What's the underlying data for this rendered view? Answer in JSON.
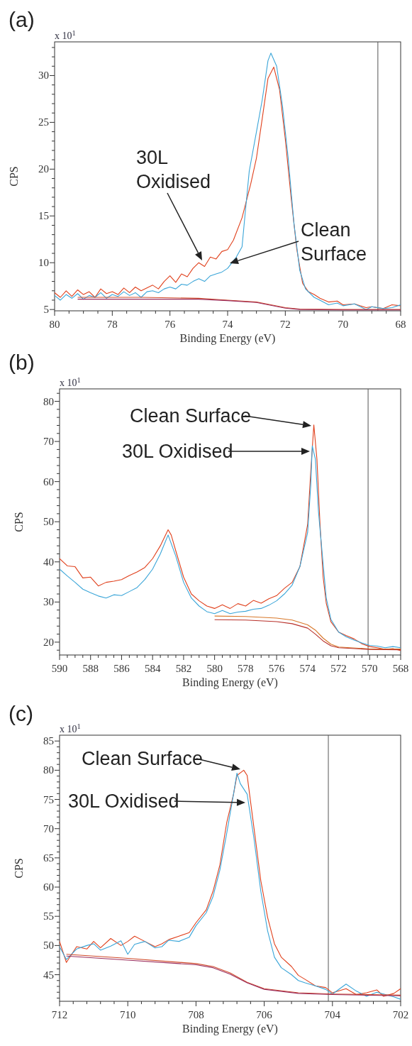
{
  "chart_data": [
    {
      "type": "line",
      "title": "(a)",
      "xlabel": "Binding Energy (eV)",
      "ylabel": "CPS",
      "xlim": [
        80,
        68
      ],
      "ylim": [
        4.86,
        33.6
      ],
      "xticks": [
        80,
        {
          "value": 79.5,
          "label": null
        },
        {
          "value": 79,
          "label": null
        },
        {
          "value": 78.5,
          "label": null
        },
        78,
        {
          "value": 77.5,
          "label": null
        },
        {
          "value": 77,
          "label": null
        },
        {
          "value": 76.5,
          "label": null
        },
        76,
        {
          "value": 75.5,
          "label": null
        },
        {
          "value": 75,
          "label": null
        },
        {
          "value": 74.5,
          "label": null
        },
        74,
        {
          "value": 73.5,
          "label": null
        },
        {
          "value": 73,
          "label": null
        },
        {
          "value": 72.5,
          "label": null
        },
        72,
        {
          "value": 71.5,
          "label": null
        },
        {
          "value": 71,
          "label": null
        },
        {
          "value": 70.5,
          "label": null
        },
        70,
        {
          "value": 69.5,
          "label": null
        },
        {
          "value": 69,
          "label": null
        },
        {
          "value": 68.5,
          "label": null
        },
        68
      ],
      "yticks": [
        5,
        {
          "value": 6,
          "label": null
        },
        {
          "value": 7,
          "label": null
        },
        {
          "value": 8,
          "label": null
        },
        {
          "value": 9,
          "label": null
        },
        10,
        {
          "value": 11,
          "label": null
        },
        {
          "value": 12,
          "label": null
        },
        {
          "value": 13,
          "label": null
        },
        {
          "value": 14,
          "label": null
        },
        15,
        {
          "value": 16,
          "label": null
        },
        {
          "value": 17,
          "label": null
        },
        {
          "value": 18,
          "label": null
        },
        {
          "value": 19,
          "label": null
        },
        20,
        {
          "value": 21,
          "label": null
        },
        {
          "value": 22,
          "label": null
        },
        {
          "value": 23,
          "label": null
        },
        {
          "value": 24,
          "label": null
        },
        25,
        {
          "value": 26,
          "label": null
        },
        {
          "value": 27,
          "label": null
        },
        {
          "value": 28,
          "label": null
        },
        {
          "value": 29,
          "label": null
        },
        30,
        {
          "value": 31,
          "label": null
        },
        {
          "value": 32,
          "label": null
        },
        {
          "value": 33,
          "label": null
        }
      ],
      "ref_lines": [
        {
          "axis": "x",
          "value": 68.79,
          "color": "#555555"
        }
      ],
      "annotations": [
        "x 10$^{1}$",
        "30L Oxidised",
        "Clean Surface"
      ],
      "series": [
        {
          "color": "#e0401c",
          "x": [
            80,
            79.8,
            79.6,
            79.4,
            79.2,
            79,
            78.8,
            78.6,
            78.4,
            78.2,
            78,
            77.8,
            77.6,
            77.4,
            77.2,
            77,
            76.8,
            76.6,
            76.4,
            76.2,
            76,
            75.8,
            75.6,
            75.4,
            75.2,
            75,
            74.8,
            74.6,
            74.4,
            74.2,
            74,
            73.8,
            73.5,
            73.2,
            73,
            72.8,
            72.6,
            72.4,
            72.2,
            72,
            71.8,
            71.6,
            71.4,
            71.2,
            71,
            70.8,
            70.5,
            70.2,
            70,
            69.6,
            69.2,
            69,
            68.6,
            68.3,
            68
          ],
          "values": [
            6.8,
            6.3,
            7.0,
            6.4,
            7.1,
            6.6,
            6.9,
            6.3,
            7.2,
            6.7,
            6.9,
            6.6,
            7.3,
            6.8,
            7.4,
            7.0,
            7.3,
            7.6,
            7.2,
            8.0,
            8.6,
            7.9,
            8.8,
            8.5,
            9.4,
            10.0,
            9.6,
            10.6,
            10.4,
            11.2,
            11.4,
            12.4,
            14.8,
            18.4,
            21.2,
            25.4,
            29.7,
            30.9,
            28.5,
            23.2,
            17.0,
            11.4,
            7.8,
            6.9,
            6.6,
            6.2,
            5.8,
            5.9,
            5.5,
            5.6,
            5.2,
            5.3,
            5.1,
            5.5,
            5.4
          ]
        },
        {
          "color": "#3aa5d8",
          "x": [
            80,
            79.8,
            79.6,
            79.4,
            79.2,
            79,
            78.8,
            78.6,
            78.4,
            78.2,
            78,
            77.8,
            77.6,
            77.4,
            77.2,
            77,
            76.8,
            76.6,
            76.4,
            76.2,
            76,
            75.8,
            75.6,
            75.4,
            75.2,
            75,
            74.8,
            74.6,
            74.4,
            74.2,
            74,
            73.7,
            73.5,
            73.4,
            73.25,
            73,
            72.8,
            72.6,
            72.5,
            72.3,
            72.1,
            71.9,
            71.7,
            71.5,
            71.3,
            71,
            70.8,
            70.5,
            70.2,
            70,
            69.6,
            69.2,
            69,
            68.6,
            68.3,
            68
          ],
          "values": [
            6.5,
            6.0,
            6.6,
            6.2,
            6.7,
            6.1,
            6.5,
            6.3,
            6.8,
            6.2,
            6.6,
            6.4,
            6.9,
            6.5,
            6.8,
            6.3,
            6.9,
            7.0,
            6.8,
            7.2,
            7.4,
            7.2,
            7.7,
            7.6,
            8.0,
            8.3,
            8.0,
            8.6,
            8.8,
            9.0,
            9.4,
            10.6,
            11.7,
            15.0,
            19.8,
            24.0,
            27.4,
            31.6,
            32.4,
            31.0,
            26.8,
            21.2,
            14.2,
            9.2,
            7.2,
            6.3,
            6.0,
            5.5,
            5.7,
            5.4,
            5.6,
            5.0,
            5.3,
            5.1,
            5.2,
            5.5
          ]
        },
        {
          "color": "#d04a2a",
          "x": [
            79.2,
            77,
            75,
            74,
            73,
            72.5,
            72,
            71.5,
            70,
            68
          ],
          "values": [
            6.3,
            6.3,
            6.2,
            6.0,
            5.8,
            5.5,
            5.2,
            5.05,
            5.0,
            5.0
          ]
        },
        {
          "color": "#9a2c5c",
          "x": [
            79.2,
            77,
            75,
            74,
            73,
            72.5,
            72,
            71.5,
            70,
            68
          ],
          "values": [
            6.1,
            6.1,
            6.1,
            5.95,
            5.75,
            5.45,
            5.15,
            5.0,
            4.95,
            4.95
          ]
        }
      ]
    },
    {
      "type": "line",
      "title": "(b)",
      "xlabel": "Binding Energy (eV)",
      "ylabel": "CPS",
      "xlim": [
        590,
        568
      ],
      "ylim": [
        16.8,
        83.1
      ],
      "xticks": [
        590,
        {
          "value": 589.5,
          "label": null
        },
        {
          "value": 589,
          "label": null
        },
        {
          "value": 588.5,
          "label": null
        },
        588,
        {
          "value": 587.5,
          "label": null
        },
        {
          "value": 587,
          "label": null
        },
        {
          "value": 586.5,
          "label": null
        },
        586,
        {
          "value": 585.5,
          "label": null
        },
        {
          "value": 585,
          "label": null
        },
        {
          "value": 584.5,
          "label": null
        },
        584,
        {
          "value": 583.5,
          "label": null
        },
        {
          "value": 583,
          "label": null
        },
        {
          "value": 582.5,
          "label": null
        },
        582,
        {
          "value": 581.5,
          "label": null
        },
        {
          "value": 581,
          "label": null
        },
        {
          "value": 580.5,
          "label": null
        },
        580,
        {
          "value": 579.5,
          "label": null
        },
        {
          "value": 579,
          "label": null
        },
        {
          "value": 578.5,
          "label": null
        },
        578,
        {
          "value": 577.5,
          "label": null
        },
        {
          "value": 577,
          "label": null
        },
        {
          "value": 576.5,
          "label": null
        },
        576,
        {
          "value": 575.5,
          "label": null
        },
        {
          "value": 575,
          "label": null
        },
        {
          "value": 574.5,
          "label": null
        },
        574,
        {
          "value": 573.5,
          "label": null
        },
        {
          "value": 573,
          "label": null
        },
        {
          "value": 572.5,
          "label": null
        },
        572,
        {
          "value": 571.5,
          "label": null
        },
        {
          "value": 571,
          "label": null
        },
        {
          "value": 570.5,
          "label": null
        },
        570,
        {
          "value": 569.5,
          "label": null
        },
        {
          "value": 569,
          "label": null
        },
        {
          "value": 568.5,
          "label": null
        },
        568
      ],
      "yticks": [
        {
          "value": 18,
          "label": null
        },
        20,
        {
          "value": 22,
          "label": null
        },
        {
          "value": 24,
          "label": null
        },
        {
          "value": 26,
          "label": null
        },
        {
          "value": 28,
          "label": null
        },
        30,
        {
          "value": 32,
          "label": null
        },
        {
          "value": 34,
          "label": null
        },
        {
          "value": 36,
          "label": null
        },
        {
          "value": 38,
          "label": null
        },
        40,
        {
          "value": 42,
          "label": null
        },
        {
          "value": 44,
          "label": null
        },
        {
          "value": 46,
          "label": null
        },
        {
          "value": 48,
          "label": null
        },
        50,
        {
          "value": 52,
          "label": null
        },
        {
          "value": 54,
          "label": null
        },
        {
          "value": 56,
          "label": null
        },
        {
          "value": 58,
          "label": null
        },
        60,
        {
          "value": 62,
          "label": null
        },
        {
          "value": 64,
          "label": null
        },
        {
          "value": 66,
          "label": null
        },
        {
          "value": 68,
          "label": null
        },
        70,
        {
          "value": 72,
          "label": null
        },
        {
          "value": 74,
          "label": null
        },
        {
          "value": 76,
          "label": null
        },
        {
          "value": 78,
          "label": null
        },
        80,
        {
          "value": 82,
          "label": null
        }
      ],
      "ref_lines": [
        {
          "axis": "x",
          "value": 570.1,
          "color": "#555555"
        }
      ],
      "annotations": [
        "x 10$^{1}$",
        "Clean Surface",
        "30L Oxidised"
      ],
      "series": [
        {
          "color": "#e0401c",
          "x": [
            590,
            589.5,
            589,
            588.5,
            588,
            587.5,
            587,
            586.5,
            586,
            585.5,
            585,
            584.5,
            584,
            583.5,
            583,
            582.8,
            582.5,
            582,
            581.5,
            581,
            580.5,
            580,
            579.5,
            579,
            578.5,
            578,
            577.5,
            577,
            576.5,
            576,
            575.5,
            575,
            574.5,
            574,
            573.8,
            573.6,
            573.4,
            573.2,
            573,
            572.8,
            572.5,
            572,
            571.5,
            571,
            570.5,
            570,
            569.5,
            569,
            568.5,
            568
          ],
          "values": [
            40.8,
            39.0,
            38.8,
            36.0,
            36.2,
            34.0,
            34.9,
            35.2,
            35.6,
            36.6,
            37.5,
            38.6,
            40.8,
            44.0,
            48.0,
            46.7,
            42.7,
            36.2,
            32.0,
            30.3,
            29.0,
            28.4,
            29.3,
            28.4,
            29.6,
            29.0,
            30.4,
            29.7,
            30.8,
            31.6,
            33.4,
            34.9,
            38.8,
            49.3,
            62.4,
            74.1,
            65.6,
            49.3,
            36.2,
            29.7,
            25.1,
            22.5,
            21.6,
            20.8,
            19.6,
            18.9,
            18.6,
            18.2,
            18.4,
            17.9
          ]
        },
        {
          "color": "#3aa5d8",
          "x": [
            590,
            589.5,
            589,
            588.5,
            588,
            587.5,
            587,
            586.5,
            586,
            585.5,
            585,
            584.5,
            584,
            583.5,
            583,
            582.5,
            582,
            581.5,
            581,
            580.5,
            580,
            579.5,
            579,
            578.5,
            578,
            577.5,
            577,
            576.5,
            576,
            575.5,
            575,
            574.5,
            574,
            573.8,
            573.7,
            573.5,
            573.3,
            573,
            572.8,
            572.5,
            572,
            571.5,
            571,
            570.5,
            570,
            569.5,
            569,
            568.5,
            568
          ],
          "values": [
            38.2,
            36.5,
            34.9,
            33.2,
            32.3,
            31.5,
            31.0,
            31.8,
            31.6,
            32.6,
            33.6,
            35.6,
            38.2,
            42.0,
            46.7,
            41.4,
            34.9,
            31.0,
            29.0,
            27.6,
            27.1,
            27.9,
            27.1,
            27.5,
            27.7,
            28.2,
            28.4,
            29.2,
            30.3,
            32.0,
            34.2,
            38.8,
            47.3,
            59.0,
            68.9,
            65.6,
            52.5,
            39.5,
            31.0,
            25.7,
            22.5,
            21.3,
            20.5,
            19.8,
            19.2,
            19.0,
            18.6,
            18.9,
            18.6
          ]
        },
        {
          "color": "#d8782a",
          "x": [
            580,
            578,
            576,
            575,
            574,
            573.5,
            573,
            572.5,
            572,
            570,
            568
          ],
          "values": [
            26.5,
            26.4,
            26.0,
            25.5,
            24.3,
            23.0,
            21.0,
            19.5,
            18.8,
            18.3,
            18.3
          ]
        },
        {
          "color": "#b8302a",
          "x": [
            580,
            578,
            576,
            575,
            574,
            573.5,
            573,
            572.5,
            572,
            570,
            568
          ],
          "values": [
            25.6,
            25.5,
            25.1,
            24.6,
            23.5,
            22.0,
            20.3,
            19.1,
            18.6,
            18.2,
            18.1
          ]
        }
      ]
    },
    {
      "type": "line",
      "title": "(c)",
      "xlabel": "Binding Energy (eV)",
      "ylabel": "CPS",
      "xlim": [
        712,
        702
      ],
      "ylim": [
        40.45,
        86.0
      ],
      "xticks": [
        712,
        {
          "value": 711.6,
          "label": null
        },
        {
          "value": 711.2,
          "label": null
        },
        {
          "value": 710.8,
          "label": null
        },
        {
          "value": 710.4,
          "label": null
        },
        710,
        {
          "value": 709.6,
          "label": null
        },
        {
          "value": 709.2,
          "label": null
        },
        {
          "value": 708.8,
          "label": null
        },
        {
          "value": 708.4,
          "label": null
        },
        708,
        {
          "value": 707.6,
          "label": null
        },
        {
          "value": 707.2,
          "label": null
        },
        {
          "value": 706.8,
          "label": null
        },
        {
          "value": 706.4,
          "label": null
        },
        706,
        {
          "value": 705.6,
          "label": null
        },
        {
          "value": 705.2,
          "label": null
        },
        {
          "value": 704.8,
          "label": null
        },
        {
          "value": 704.4,
          "label": null
        },
        704,
        {
          "value": 703.6,
          "label": null
        },
        {
          "value": 703.2,
          "label": null
        },
        {
          "value": 702.8,
          "label": null
        },
        {
          "value": 702.4,
          "label": null
        },
        702
      ],
      "yticks": [
        {
          "value": 41,
          "label": null
        },
        {
          "value": 42,
          "label": null
        },
        {
          "value": 43,
          "label": null
        },
        {
          "value": 44,
          "label": null
        },
        45,
        {
          "value": 46,
          "label": null
        },
        {
          "value": 47,
          "label": null
        },
        {
          "value": 48,
          "label": null
        },
        {
          "value": 49,
          "label": null
        },
        50,
        {
          "value": 51,
          "label": null
        },
        {
          "value": 52,
          "label": null
        },
        {
          "value": 53,
          "label": null
        },
        {
          "value": 54,
          "label": null
        },
        55,
        {
          "value": 56,
          "label": null
        },
        {
          "value": 57,
          "label": null
        },
        {
          "value": 58,
          "label": null
        },
        {
          "value": 59,
          "label": null
        },
        60,
        {
          "value": 61,
          "label": null
        },
        {
          "value": 62,
          "label": null
        },
        {
          "value": 63,
          "label": null
        },
        {
          "value": 64,
          "label": null
        },
        65,
        {
          "value": 66,
          "label": null
        },
        {
          "value": 67,
          "label": null
        },
        {
          "value": 68,
          "label": null
        },
        {
          "value": 69,
          "label": null
        },
        70,
        {
          "value": 71,
          "label": null
        },
        {
          "value": 72,
          "label": null
        },
        {
          "value": 73,
          "label": null
        },
        {
          "value": 74,
          "label": null
        },
        75,
        {
          "value": 76,
          "label": null
        },
        {
          "value": 77,
          "label": null
        },
        {
          "value": 78,
          "label": null
        },
        {
          "value": 79,
          "label": null
        },
        80,
        {
          "value": 81,
          "label": null
        },
        {
          "value": 82,
          "label": null
        },
        {
          "value": 83,
          "label": null
        },
        {
          "value": 84,
          "label": null
        },
        85
      ],
      "ref_lines": [
        {
          "axis": "x",
          "value": 704.12,
          "color": "#555555"
        }
      ],
      "annotations": [
        "x 10$^{1}$",
        "Clean Surface",
        "30L Oxidised"
      ],
      "series": [
        {
          "color": "#e0401c",
          "x": [
            712,
            711.8,
            711.5,
            711.2,
            711,
            710.8,
            710.5,
            710.2,
            710,
            709.8,
            709.5,
            709.2,
            709,
            708.8,
            708.5,
            708.2,
            708,
            707.7,
            707.5,
            707.3,
            707.1,
            706.9,
            706.8,
            706.6,
            706.5,
            706.3,
            706.1,
            705.9,
            705.7,
            705.5,
            705.2,
            705,
            704.8,
            704.5,
            704.2,
            704,
            703.6,
            703.3,
            703,
            702.7,
            702.5,
            702.2,
            702
          ],
          "values": [
            50.7,
            47.1,
            49.8,
            49.4,
            50.7,
            49.6,
            51.2,
            50.0,
            50.7,
            51.6,
            50.7,
            49.8,
            50.3,
            51.0,
            51.6,
            52.2,
            53.9,
            56.1,
            59.3,
            63.8,
            71.0,
            75.9,
            79.1,
            80.0,
            79.1,
            70.1,
            61.1,
            54.8,
            50.3,
            48.0,
            46.4,
            44.9,
            44.2,
            43.1,
            42.8,
            41.9,
            42.6,
            41.6,
            41.9,
            42.4,
            41.3,
            41.8,
            42.6
          ]
        },
        {
          "color": "#3aa5d8",
          "x": [
            712,
            711.8,
            711.5,
            711.2,
            711,
            710.8,
            710.5,
            710.2,
            710,
            709.8,
            709.5,
            709.2,
            709,
            708.8,
            708.5,
            708.2,
            708,
            707.7,
            707.5,
            707.3,
            707.1,
            706.9,
            706.8,
            706.7,
            706.5,
            706.3,
            706.1,
            705.9,
            705.7,
            705.5,
            705.2,
            705,
            704.8,
            704.5,
            704.2,
            704,
            703.6,
            703.3,
            703,
            702.7,
            702.5,
            702.2,
            702
          ],
          "values": [
            49.8,
            47.6,
            49.4,
            50.0,
            50.3,
            49.2,
            49.9,
            50.8,
            48.5,
            50.2,
            50.7,
            49.6,
            49.8,
            50.9,
            50.7,
            51.4,
            53.4,
            55.6,
            58.4,
            62.9,
            69.2,
            75.9,
            79.5,
            77.7,
            75.9,
            68.3,
            59.3,
            52.5,
            48.0,
            46.2,
            45.0,
            44.0,
            43.6,
            43.1,
            42.5,
            41.7,
            43.4,
            42.2,
            41.3,
            42.0,
            41.7,
            41.2,
            40.8
          ]
        },
        {
          "color": "#d04a2a",
          "x": [
            711.8,
            710,
            708,
            707.5,
            707,
            706.5,
            706,
            705,
            704,
            702
          ],
          "values": [
            48.5,
            47.8,
            46.9,
            46.4,
            45.3,
            43.7,
            42.6,
            41.9,
            41.7,
            41.5
          ]
        },
        {
          "color": "#9a2c5c",
          "x": [
            711.8,
            710,
            708,
            707.5,
            707,
            706.5,
            706,
            705,
            704,
            702
          ],
          "values": [
            48.2,
            47.5,
            46.7,
            46.2,
            45.1,
            43.6,
            42.5,
            41.8,
            41.6,
            41.4
          ]
        }
      ]
    }
  ]
}
